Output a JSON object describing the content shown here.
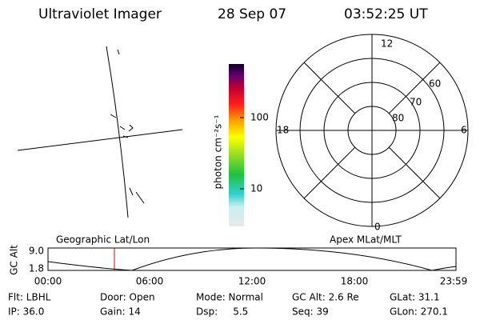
{
  "header": {
    "title": "Ultraviolet Imager",
    "date": "28 Sep 07",
    "time": "03:52:25 UT"
  },
  "colorbar": {
    "label": "photon cm⁻²s⁻¹",
    "ticks": [
      "100",
      "10"
    ]
  },
  "polar": {
    "mlt_labels": [
      "12",
      "18",
      "6",
      "0"
    ],
    "lat_labels": [
      "60",
      "70",
      "80"
    ]
  },
  "map_labels": {
    "left": "Geographic Lat/Lon",
    "right": "Apex MLat/MLT"
  },
  "altitude": {
    "axis_label": "GC Alt",
    "ticks": [
      "9.0",
      "1.8"
    ],
    "times": [
      "00:00",
      "06:00",
      "12:00",
      "18:00",
      "23:59"
    ]
  },
  "info": {
    "rows": [
      [
        "Flt: LBHL",
        "Door: Open",
        "Mode: Normal",
        "GC Alt: 2.6 Re",
        "GLat: 31.1"
      ],
      [
        "IP: 36.0",
        "Gain: 14",
        "Dsp:     5.5",
        "Seq: 39",
        "GLon: 270.1"
      ]
    ]
  }
}
